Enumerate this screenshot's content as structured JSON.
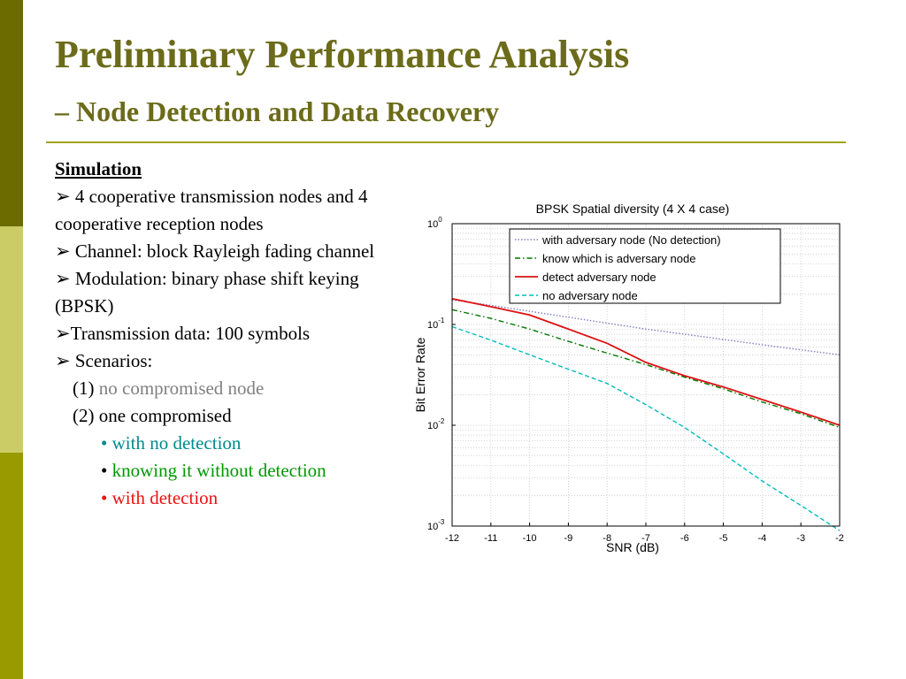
{
  "slide": {
    "title": "Preliminary Performance Analysis",
    "subtitle_dash": "–",
    "subtitle": "Node Detection and Data Recovery"
  },
  "body": {
    "heading": "Simulation",
    "bullet_glyph": "➢",
    "bullets": [
      "4 cooperative transmission nodes and 4 cooperative reception nodes",
      "Channel: block Rayleigh fading channel",
      "Modulation: binary phase shift keying (BPSK)",
      "Transmission data: 100 symbols",
      "Scenarios:"
    ],
    "scenarios": [
      {
        "num": "(1)",
        "text": "no compromised node"
      },
      {
        "num": "(2)",
        "text": "one compromised"
      }
    ],
    "sub_bullet_glyph": "•",
    "sub_bullets": [
      "with no detection",
      "knowing it without detection",
      "with detection"
    ]
  },
  "colors": {
    "title": "#6b6b1a",
    "rule": "#a3a31a",
    "bar_dark": "#6b6b00",
    "bar_light": "#cccc66",
    "bar_mid": "#999900",
    "grey_text": "#808080",
    "teal_text": "#008b8b",
    "green_text": "#009900",
    "red_text": "#ee1111"
  },
  "chart_data": {
    "type": "line",
    "title": "BPSK Spatial diversity (4 X 4 case)",
    "xlabel": "SNR (dB)",
    "ylabel": "Bit Error Rate",
    "xlim": [
      -12,
      -2
    ],
    "ylim": [
      0.001,
      1
    ],
    "y_scale": "log",
    "grid": true,
    "legend_position": "top-right",
    "x": [
      -12,
      -11,
      -10,
      -9,
      -8,
      -7,
      -6,
      -5,
      -4,
      -3,
      -2
    ],
    "x_tick_labels": [
      "-12",
      "-11",
      "-10",
      "-9",
      "-8",
      "-7",
      "-6",
      "-5",
      "-4",
      "-3",
      "-2"
    ],
    "y_ticks": [
      {
        "value": 1,
        "base": "10",
        "exp": "0"
      },
      {
        "value": 0.1,
        "base": "10",
        "exp": "-1"
      },
      {
        "value": 0.01,
        "base": "10",
        "exp": "-2"
      },
      {
        "value": 0.001,
        "base": "10",
        "exp": "-3"
      }
    ],
    "series": [
      {
        "name": "with adversary node (No detection)",
        "color": "#8080c0",
        "dash": "1.5 2",
        "values": [
          0.175,
          0.155,
          0.135,
          0.118,
          0.103,
          0.09,
          0.08,
          0.071,
          0.063,
          0.056,
          0.05
        ]
      },
      {
        "name": "know which is adversary node",
        "color": "#007700",
        "dash": "6 3 1.5 3",
        "values": [
          0.14,
          0.115,
          0.09,
          0.068,
          0.052,
          0.04,
          0.03,
          0.023,
          0.017,
          0.013,
          0.0095
        ]
      },
      {
        "name": "detect adversary node",
        "color": "#dd1111",
        "dash": "",
        "values": [
          0.18,
          0.15,
          0.124,
          0.09,
          0.065,
          0.042,
          0.031,
          0.024,
          0.018,
          0.0135,
          0.01
        ]
      },
      {
        "name": "no adversary node",
        "color": "#00bbbb",
        "dash": "5 3",
        "values": [
          0.095,
          0.07,
          0.05,
          0.036,
          0.026,
          0.016,
          0.0095,
          0.0052,
          0.0028,
          0.0016,
          0.0009
        ]
      }
    ]
  }
}
